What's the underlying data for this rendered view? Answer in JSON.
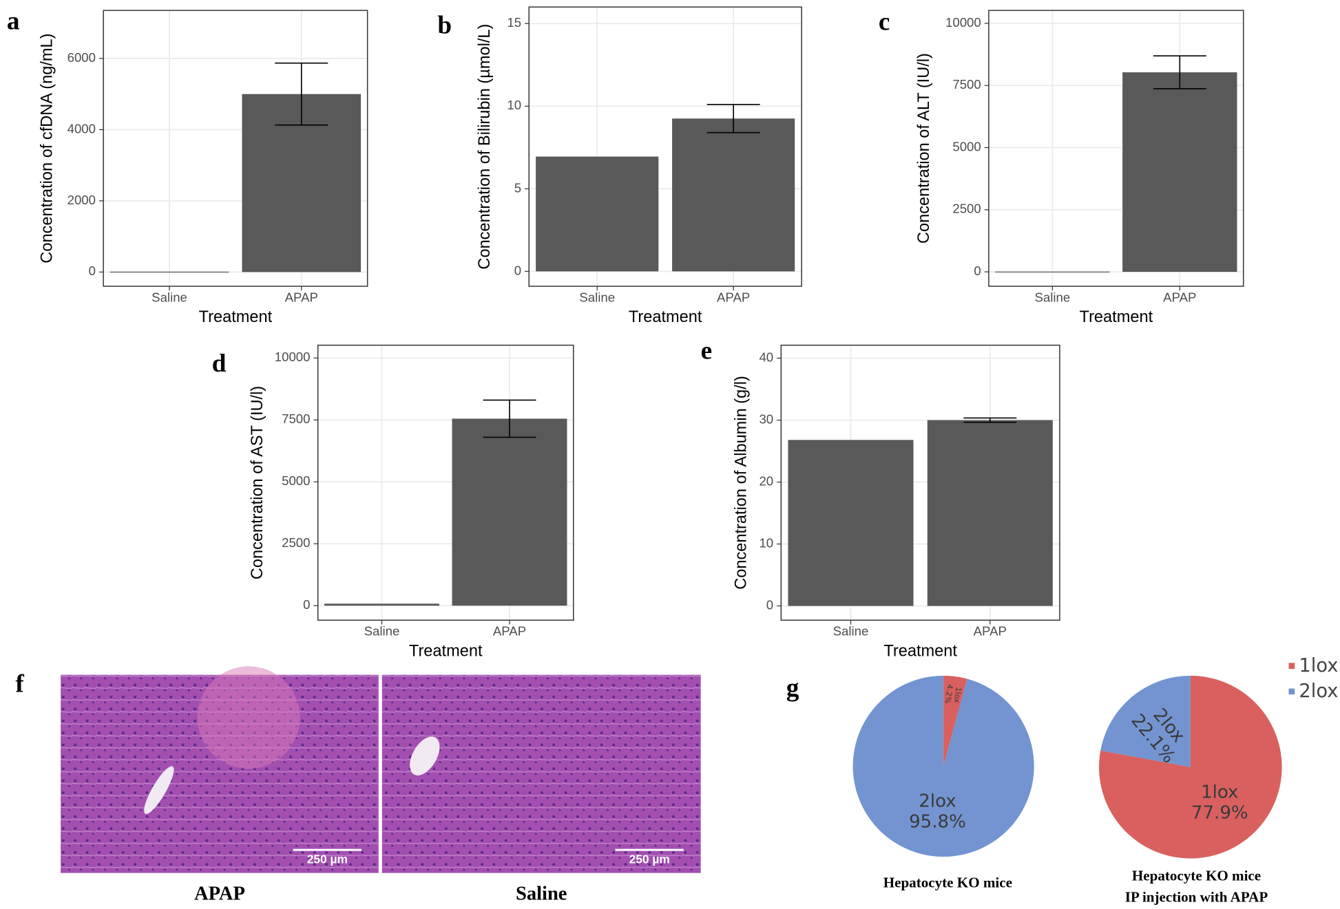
{
  "chart_data": [
    {
      "type": "bar",
      "panel": "a",
      "y_label": "Concentration of cfDNA (ng/mL)",
      "x_label": "Treatment",
      "categories": [
        "Saline",
        "APAP"
      ],
      "values": [
        10,
        5000
      ],
      "errors": [
        null,
        870
      ],
      "color": "#595959",
      "ylim": [
        -400,
        7350
      ],
      "yticks": [
        0,
        2000,
        4000,
        6000
      ],
      "grid": true
    },
    {
      "type": "bar",
      "panel": "b",
      "y_label": "Concentration of Bilirubin (µmol/L)",
      "x_label": "Treatment",
      "categories": [
        "Saline",
        "APAP"
      ],
      "values": [
        6.95,
        9.25
      ],
      "errors": [
        null,
        0.85
      ],
      "color": "#595959",
      "ylim": [
        -0.9,
        16
      ],
      "yticks": [
        0,
        5,
        10,
        15
      ],
      "grid": true
    },
    {
      "type": "bar",
      "panel": "c",
      "y_label": "Concentration of ALT (IU/l)",
      "x_label": "Treatment",
      "categories": [
        "Saline",
        "APAP"
      ],
      "values": [
        10,
        8030
      ],
      "errors": [
        null,
        660
      ],
      "color": "#595959",
      "ylim": [
        -580,
        10520
      ],
      "yticks": [
        0,
        2500,
        5000,
        7500,
        10000
      ],
      "grid": true
    },
    {
      "type": "bar",
      "panel": "d",
      "y_label": "Concentration of AST (IU/l)",
      "x_label": "Treatment",
      "categories": [
        "Saline",
        "APAP"
      ],
      "values": [
        80,
        7550
      ],
      "errors": [
        null,
        750
      ],
      "color": "#595959",
      "ylim": [
        -586,
        10517
      ],
      "yticks": [
        0,
        2500,
        5000,
        7500,
        10000
      ],
      "grid": true
    },
    {
      "type": "bar",
      "panel": "e",
      "y_label": "Concentration of Albumin (g/l)",
      "x_label": "Treatment",
      "categories": [
        "Saline",
        "APAP"
      ],
      "values": [
        26.8,
        30.0
      ],
      "errors": [
        null,
        0.35
      ],
      "color": "#595959",
      "ylim": [
        -2.3,
        42.1
      ],
      "yticks": [
        0,
        10,
        20,
        30,
        40
      ],
      "grid": true
    },
    {
      "type": "pie",
      "panel": "g",
      "title": [
        "Hepatocyte KO mice"
      ],
      "categories": [
        "1lox",
        "2lox"
      ],
      "values": [
        4.2,
        95.8
      ],
      "value_labels": [
        "4.2%",
        "95.8%"
      ],
      "colors": [
        "#d9605f",
        "#7394d0"
      ],
      "legend": "top-right"
    },
    {
      "type": "pie",
      "title": [
        "Hepatocyte KO mice",
        "IP injection with APAP"
      ],
      "categories": [
        "1lox",
        "2lox"
      ],
      "values": [
        77.9,
        22.1
      ],
      "value_labels": [
        "77.9%",
        "22.1%"
      ],
      "colors": [
        "#d9605f",
        "#7394d0"
      ]
    }
  ],
  "micrographs": {
    "panel": "f",
    "images": [
      {
        "label": "APAP",
        "scale_bar": "250 µm"
      },
      {
        "label": "Saline",
        "scale_bar": "250 µm"
      }
    ]
  }
}
